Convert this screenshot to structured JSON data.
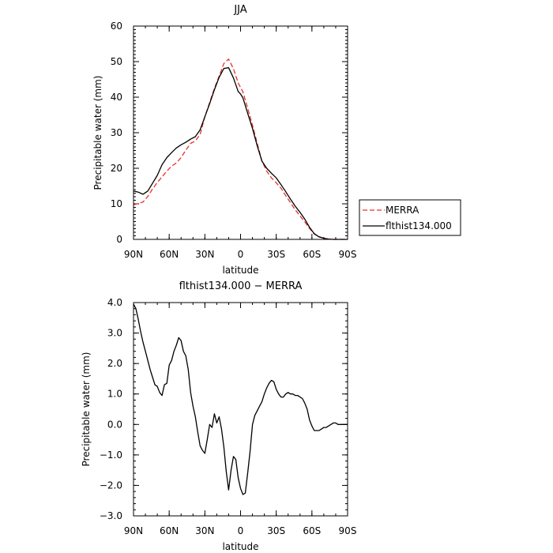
{
  "chart_data": [
    {
      "type": "line",
      "title": "JJA",
      "xlabel": "latitude",
      "ylabel": "Precipitable water  (mm)",
      "xlim": [
        90,
        -90
      ],
      "ylim": [
        0,
        60
      ],
      "x_ticks": [
        {
          "value": 90,
          "label": "90N"
        },
        {
          "value": 60,
          "label": "60N"
        },
        {
          "value": 30,
          "label": "30N"
        },
        {
          "value": 0,
          "label": "0"
        },
        {
          "value": -30,
          "label": "30S"
        },
        {
          "value": -60,
          "label": "60S"
        },
        {
          "value": -90,
          "label": "90S"
        }
      ],
      "y_ticks": [
        {
          "value": 0,
          "label": "0"
        },
        {
          "value": 10,
          "label": "10"
        },
        {
          "value": 20,
          "label": "20"
        },
        {
          "value": 30,
          "label": "30"
        },
        {
          "value": 40,
          "label": "40"
        },
        {
          "value": 50,
          "label": "50"
        },
        {
          "value": 60,
          "label": "60"
        }
      ],
      "legend": "right, outside plot",
      "series": [
        {
          "name": "MERRA",
          "color": "#e8302a",
          "style": "dashed",
          "x": [
            90,
            86,
            82,
            78,
            74,
            70,
            66,
            62,
            58,
            54,
            50,
            46,
            42,
            38,
            34,
            30,
            26,
            22,
            18,
            14,
            10,
            6,
            2,
            0,
            -2,
            -6,
            -10,
            -14,
            -18,
            -22,
            -26,
            -30,
            -34,
            -38,
            -42,
            -46,
            -50,
            -54,
            -58,
            -62,
            -66,
            -70,
            -74,
            -78,
            -82,
            -86,
            -90
          ],
          "y": [
            9.7,
            10.1,
            10.5,
            12.1,
            14.2,
            16.0,
            17.6,
            19.2,
            20.6,
            21.5,
            23.0,
            25.1,
            27.0,
            27.7,
            29.5,
            34.5,
            38.5,
            42.5,
            45.9,
            49.5,
            50.7,
            48.0,
            44.0,
            42.7,
            41.5,
            36.9,
            32.1,
            27.0,
            22.0,
            19.2,
            17.3,
            15.9,
            14.4,
            12.3,
            10.3,
            8.3,
            6.6,
            4.9,
            3.1,
            1.5,
            0.8,
            0.3,
            0.1,
            0.0,
            0.0,
            0.0,
            0.0
          ]
        },
        {
          "name": "flthist134.000",
          "color": "#000000",
          "style": "solid",
          "x": [
            90,
            86,
            82,
            78,
            74,
            70,
            66,
            62,
            58,
            54,
            50,
            46,
            42,
            38,
            34,
            30,
            26,
            22,
            18,
            14,
            10,
            6,
            2,
            0,
            -2,
            -6,
            -10,
            -14,
            -18,
            -22,
            -26,
            -30,
            -34,
            -38,
            -42,
            -46,
            -50,
            -54,
            -58,
            -62,
            -66,
            -70,
            -74,
            -78,
            -82,
            -86,
            -90
          ],
          "y": [
            13.6,
            13.3,
            12.7,
            13.6,
            15.8,
            18.0,
            21.0,
            23.0,
            24.4,
            25.7,
            26.6,
            27.3,
            28.2,
            28.9,
            30.8,
            34.5,
            38.2,
            42.1,
            45.6,
            48.1,
            48.3,
            45.4,
            41.6,
            40.9,
            39.8,
            35.5,
            31.2,
            26.3,
            22.0,
            20.0,
            18.6,
            17.3,
            15.4,
            13.4,
            11.3,
            9.3,
            7.6,
            5.7,
            3.4,
            1.6,
            0.7,
            0.3,
            0.1,
            0.0,
            0.0,
            0.0,
            0.0
          ]
        }
      ]
    },
    {
      "type": "line",
      "title": "flthist134.000 − MERRA",
      "xlabel": "latitude",
      "ylabel": "Precipitable water  (mm)",
      "xlim": [
        90,
        -90
      ],
      "ylim": [
        -3,
        4
      ],
      "x_ticks": [
        {
          "value": 90,
          "label": "90N"
        },
        {
          "value": 60,
          "label": "60N"
        },
        {
          "value": 30,
          "label": "30N"
        },
        {
          "value": 0,
          "label": "0"
        },
        {
          "value": -30,
          "label": "30S"
        },
        {
          "value": -60,
          "label": "60S"
        },
        {
          "value": -90,
          "label": "90S"
        }
      ],
      "y_ticks": [
        {
          "value": 4,
          "label": "4.0"
        },
        {
          "value": 3,
          "label": "3.0"
        },
        {
          "value": 2,
          "label": "2.0"
        },
        {
          "value": 1,
          "label": "1.0"
        },
        {
          "value": 0,
          "label": "0.0"
        },
        {
          "value": -1,
          "label": "−1.0"
        },
        {
          "value": -2,
          "label": "−2.0"
        },
        {
          "value": -3,
          "label": "−3.0"
        }
      ],
      "series": [
        {
          "color": "#000000",
          "style": "solid",
          "x": [
            90,
            88,
            86,
            84,
            82,
            80,
            78,
            76,
            74,
            72,
            70,
            68,
            66,
            64,
            62,
            60,
            58,
            56,
            54,
            52,
            50,
            48,
            46,
            44,
            42,
            40,
            38,
            36,
            34,
            32,
            30,
            28,
            26,
            24,
            22,
            20,
            18,
            16,
            14,
            12,
            10,
            8,
            6,
            4,
            2,
            0,
            -2,
            -4,
            -6,
            -8,
            -10,
            -12,
            -14,
            -16,
            -18,
            -20,
            -22,
            -24,
            -26,
            -28,
            -30,
            -32,
            -34,
            -36,
            -38,
            -40,
            -42,
            -44,
            -46,
            -48,
            -50,
            -52,
            -54,
            -56,
            -58,
            -60,
            -62,
            -64,
            -66,
            -68,
            -70,
            -72,
            -74,
            -76,
            -78,
            -80,
            -82,
            -84,
            -86,
            -88,
            -90
          ],
          "y": [
            3.95,
            3.8,
            3.45,
            3.05,
            2.7,
            2.4,
            2.1,
            1.8,
            1.55,
            1.3,
            1.25,
            1.05,
            0.95,
            1.3,
            1.35,
            1.95,
            2.1,
            2.4,
            2.6,
            2.85,
            2.75,
            2.4,
            2.25,
            1.8,
            1.05,
            0.6,
            0.25,
            -0.25,
            -0.7,
            -0.85,
            -0.95,
            -0.5,
            0.0,
            -0.1,
            0.35,
            0.05,
            0.25,
            -0.15,
            -0.75,
            -1.55,
            -2.15,
            -1.5,
            -1.05,
            -1.15,
            -1.75,
            -2.1,
            -2.3,
            -2.25,
            -1.6,
            -0.9,
            0.0,
            0.3,
            0.45,
            0.6,
            0.75,
            1.0,
            1.2,
            1.35,
            1.45,
            1.4,
            1.15,
            1.0,
            0.9,
            0.9,
            1.0,
            1.05,
            1.0,
            1.0,
            0.95,
            0.95,
            0.9,
            0.85,
            0.7,
            0.5,
            0.15,
            -0.05,
            -0.2,
            -0.2,
            -0.2,
            -0.15,
            -0.1,
            -0.1,
            -0.05,
            0.0,
            0.05,
            0.05,
            0.0,
            0.0,
            0.0,
            0.0,
            0.0
          ]
        }
      ]
    }
  ]
}
